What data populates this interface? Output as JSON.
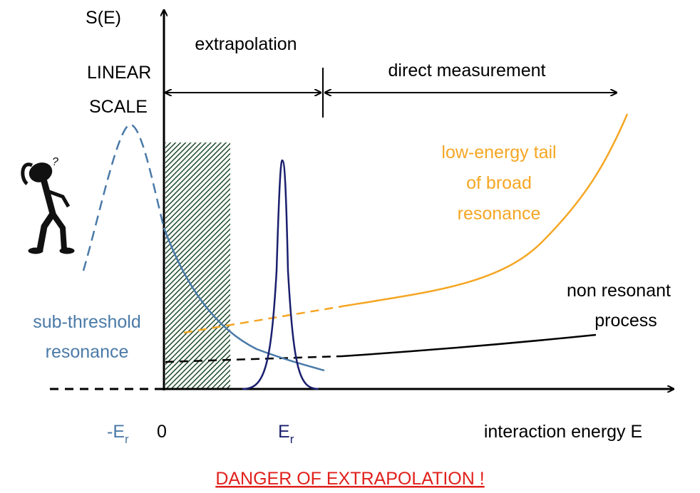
{
  "axis_labels": {
    "y": "S(E)",
    "x": "interaction energy E"
  },
  "scale_note": [
    "LINEAR",
    "SCALE"
  ],
  "regions": {
    "extrapolation": "extrapolation",
    "direct": "direct measurement"
  },
  "curves": {
    "broad_resonance": [
      "low-energy tail",
      "of broad",
      "resonance"
    ],
    "non_resonant": [
      "non resonant",
      "process"
    ],
    "sub_threshold": [
      "sub-threshold",
      "resonance"
    ]
  },
  "x_marks": {
    "minus_er": {
      "main": "-E",
      "sub": "r"
    },
    "zero": "0",
    "er": {
      "main": "E",
      "sub": "r"
    }
  },
  "thinker": "?",
  "warning": "DANGER OF EXTRAPOLATION !"
}
